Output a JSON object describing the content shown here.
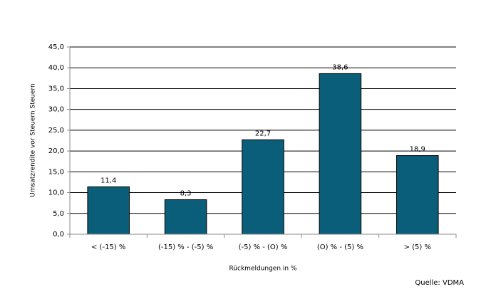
{
  "chart_data": {
    "type": "bar",
    "y_label": "Umsatzrendite vor Steuern Steuern",
    "x_label": "Rückmeldungen in %",
    "annotation": "Quelle: VDMA",
    "categories": [
      "< (-15) %",
      "(-15) % - (-5) %",
      "(-5) % - (O) %",
      "(O) % - (5) %",
      "> (5) %"
    ],
    "values": [
      11.4,
      8.3,
      22.7,
      38.6,
      18.9
    ],
    "value_labels": [
      "11,4",
      "8,3",
      "22,7",
      "38,6",
      "18,9"
    ],
    "color": "#0b5e7a",
    "ylim": [
      0,
      45
    ],
    "yticks": [
      {
        "value": 0,
        "label": "0,0"
      },
      {
        "value": 5,
        "label": "5,0"
      },
      {
        "value": 10,
        "label": "10,0"
      },
      {
        "value": 15,
        "label": "15,0"
      },
      {
        "value": 20,
        "label": "20,0"
      },
      {
        "value": 25,
        "label": "25,0"
      },
      {
        "value": 30,
        "label": "30,0"
      },
      {
        "value": 35,
        "label": "35,0"
      },
      {
        "value": 40,
        "label": "40,0"
      },
      {
        "value": 45,
        "label": "45,0"
      }
    ],
    "grid": true
  }
}
